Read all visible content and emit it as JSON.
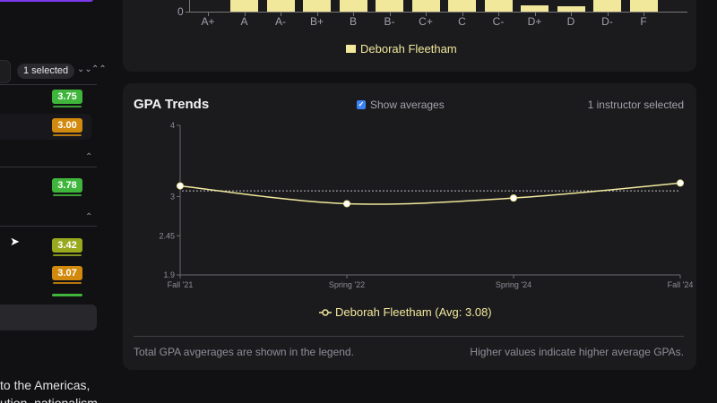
{
  "sidebar": {
    "selected_badge": "1 selected",
    "expand_icon": "double-chevron-down-icon",
    "collapse_icon": "double-chevron-up-icon",
    "gpa_values": [
      "3.75",
      "3.00",
      "3.78",
      "3.42",
      "3.07"
    ],
    "description_lines": [
      "to the Americas,",
      "ution, nationalism"
    ]
  },
  "distribution": {
    "zero_label": "0",
    "grades": [
      "A+",
      "A",
      "A-",
      "B+",
      "B",
      "B-",
      "C+",
      "C",
      "C-",
      "D+",
      "D",
      "D-",
      "F"
    ],
    "legend": "Deborah Fleetham"
  },
  "trends": {
    "title": "GPA Trends",
    "show_averages_label": "Show averages",
    "show_averages_checked": true,
    "selection_status": "1 instructor selected",
    "legend": "Deborah Fleetham (Avg: 3.08)",
    "footer_left": "Total GPA avgerages are shown in the legend.",
    "footer_right": "Higher values indicate higher average GPAs."
  },
  "colors": {
    "series": "#f2e89b",
    "green": "#3fb53c",
    "orange": "#d18a0e",
    "olive": "#98a91e",
    "accent": "#3b82f6"
  },
  "chart_data": {
    "type": "line",
    "title": "GPA Trends",
    "x": [
      "Fall '21",
      "Spring '22",
      "Spring '24",
      "Fall '24"
    ],
    "series": [
      {
        "name": "Deborah Fleetham",
        "values": [
          3.15,
          2.9,
          2.98,
          3.19
        ]
      }
    ],
    "average": 3.08,
    "y_ticks": [
      1.9,
      2.45,
      3,
      4
    ],
    "ylim": [
      1.9,
      4
    ],
    "xlabel": "",
    "ylabel": ""
  }
}
